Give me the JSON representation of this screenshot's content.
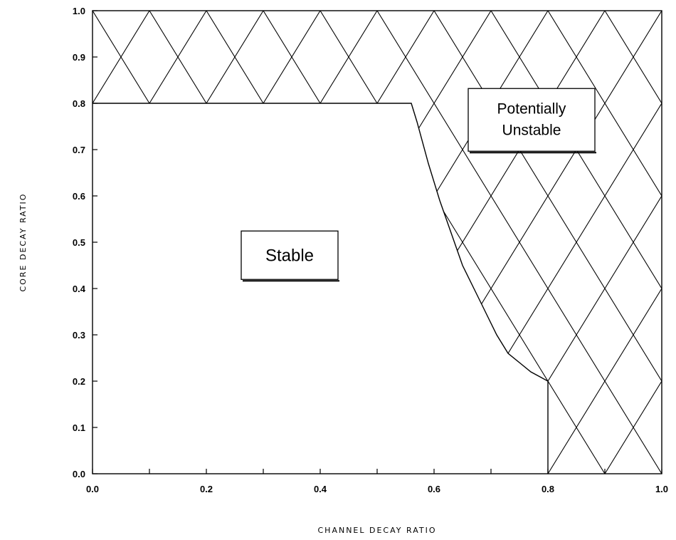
{
  "chart_data": {
    "type": "area",
    "title": "",
    "xlabel": "CHANNEL DECAY RATIO",
    "ylabel": "CORE DECAY RATIO",
    "xlim": [
      0.0,
      1.0
    ],
    "ylim": [
      0.0,
      1.0
    ],
    "x_ticks": [
      "0.0",
      "0.2",
      "0.4",
      "0.6",
      "0.8",
      "1.0"
    ],
    "y_ticks": [
      "0.0",
      "0.1",
      "0.2",
      "0.3",
      "0.4",
      "0.5",
      "0.6",
      "0.7",
      "0.8",
      "0.9",
      "1.0"
    ],
    "grid": false,
    "regions": [
      {
        "name": "Stable",
        "fill": "none"
      },
      {
        "name": "Potentially Unstable",
        "fill": "crosshatch"
      }
    ],
    "boundary": {
      "x": [
        0.0,
        0.56,
        0.57,
        0.59,
        0.61,
        0.63,
        0.65,
        0.67,
        0.69,
        0.71,
        0.73,
        0.75,
        0.77,
        0.8,
        0.8
      ],
      "y": [
        0.8,
        0.8,
        0.76,
        0.67,
        0.59,
        0.52,
        0.45,
        0.4,
        0.35,
        0.3,
        0.26,
        0.24,
        0.22,
        0.2,
        0.0
      ]
    },
    "annotations": [
      {
        "text": "Stable",
        "x": 0.34,
        "y": 0.475
      },
      {
        "text_lines": [
          "Potentially",
          "Unstable"
        ],
        "x": 0.77,
        "y": 0.735
      }
    ]
  }
}
